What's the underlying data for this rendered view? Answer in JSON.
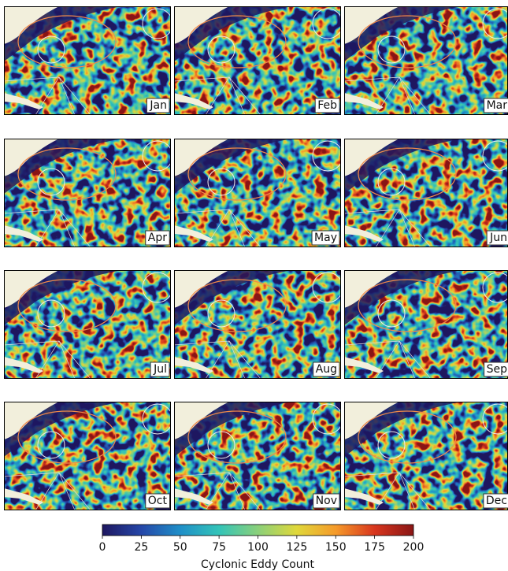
{
  "chart_data": {
    "type": "heatmap",
    "panels": [
      "Jan",
      "Feb",
      "Mar",
      "Apr",
      "May",
      "Jun",
      "Jul",
      "Aug",
      "Sep",
      "Oct",
      "Nov",
      "Dec"
    ],
    "colorbar": {
      "label": "Cyclonic Eddy Count",
      "xlim": [
        0,
        200
      ],
      "xticks": [
        0,
        25,
        50,
        75,
        100,
        125,
        150,
        175,
        200
      ],
      "colors": [
        "#1e1760",
        "#2547a8",
        "#1f8fc8",
        "#33c4b8",
        "#8ad07a",
        "#e0d83a",
        "#f59a2a",
        "#d8361e",
        "#8a1616"
      ]
    }
  }
}
